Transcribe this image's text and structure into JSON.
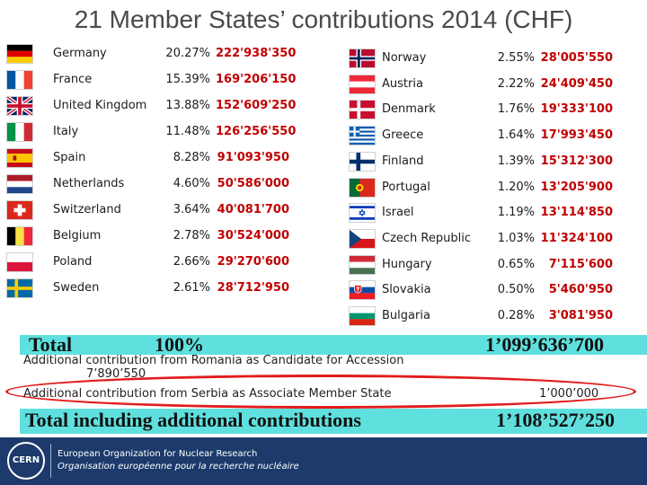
{
  "title": "21 Member States’ contributions 2014 (CHF)",
  "left_countries": [
    {
      "name": "Germany",
      "pct": "20.27%",
      "amount": "222'938'350",
      "flag": "flag-germany"
    },
    {
      "name": "France",
      "pct": "15.39%",
      "amount": "169'206'150",
      "flag": "flag-france"
    },
    {
      "name": "United Kingdom",
      "pct": "13.88%",
      "amount": "152'609'250",
      "flag": "flag-united-kingdom"
    },
    {
      "name": "Italy",
      "pct": "11.48%",
      "amount": "126'256'550",
      "flag": "flag-italy"
    },
    {
      "name": "Spain",
      "pct": "8.28%",
      "amount": "91'093'950",
      "flag": "flag-spain"
    },
    {
      "name": "Netherlands",
      "pct": "4.60%",
      "amount": "50'586'000",
      "flag": "flag-netherlands"
    },
    {
      "name": "Switzerland",
      "pct": "3.64%",
      "amount": "40'081'700",
      "flag": "flag-switzerland"
    },
    {
      "name": "Belgium",
      "pct": "2.78%",
      "amount": "30'524'000",
      "flag": "flag-belgium"
    },
    {
      "name": "Poland",
      "pct": "2.66%",
      "amount": "29'270'600",
      "flag": "flag-poland"
    },
    {
      "name": "Sweden",
      "pct": "2.61%",
      "amount": "28'712'950",
      "flag": "flag-sweden"
    }
  ],
  "right_countries": [
    {
      "name": "Norway",
      "pct": "2.55%",
      "amount": "28'005'550",
      "flag": "flag-norway"
    },
    {
      "name": "Austria",
      "pct": "2.22%",
      "amount": "24'409'450",
      "flag": "flag-austria"
    },
    {
      "name": "Denmark",
      "pct": "1.76%",
      "amount": "19'333'100",
      "flag": "flag-denmark"
    },
    {
      "name": "Greece",
      "pct": "1.64%",
      "amount": "17'993'450",
      "flag": "flag-greece"
    },
    {
      "name": "Finland",
      "pct": "1.39%",
      "amount": "15'312'300",
      "flag": "flag-finland"
    },
    {
      "name": "Portugal",
      "pct": "1.20%",
      "amount": "13'205'900",
      "flag": "flag-portugal"
    },
    {
      "name": "Israel",
      "pct": "1.19%",
      "amount": "13'114'850",
      "flag": "flag-israel"
    },
    {
      "name": "Czech Republic",
      "pct": "1.03%",
      "amount": "11'324'100",
      "flag": "flag-czech-republic"
    },
    {
      "name": "Hungary",
      "pct": "0.65%",
      "amount": "7'115'600",
      "flag": "flag-hungary"
    },
    {
      "name": "Slovakia",
      "pct": "0.50%",
      "amount": "5'460'950",
      "flag": "flag-slovakia"
    },
    {
      "name": "Bulgaria",
      "pct": "0.28%",
      "amount": "3'081'950",
      "flag": "flag-bulgaria"
    }
  ],
  "total": {
    "label": "Total",
    "pct": "100%",
    "amount": "1’099’636’700"
  },
  "romania": {
    "text": "Additional contribution from Romania as Candidate for Accession",
    "amount": "7’890’550"
  },
  "serbia": {
    "text": "Additional contribution from Serbia as Associate Member State",
    "amount": "1’000’000"
  },
  "grand_total": {
    "label": "Total including additional contributions",
    "amount": "1’108’527’250"
  },
  "footer": {
    "logo_text": "CERN",
    "line1": "European Organization for Nuclear Research",
    "line2": "Organisation européenne pour la recherche nucléaire"
  },
  "colors": {
    "amount_red": "#c00000",
    "total_band": "#5fe0de",
    "highlight_oval": "#e21b1b",
    "footer_bg": "#1c3a6b"
  }
}
